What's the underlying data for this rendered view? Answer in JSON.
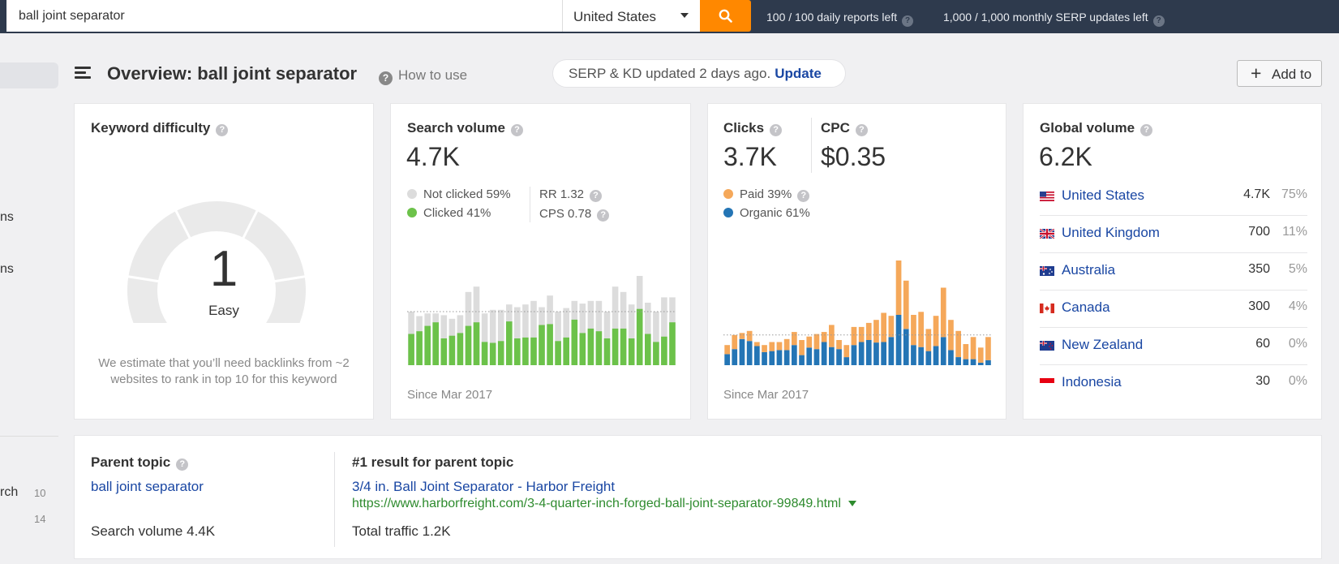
{
  "topbar": {
    "search_value": "ball joint separator",
    "country": "United States",
    "daily_reports": "100 / 100 daily reports left",
    "monthly_updates": "1,000 / 1,000 monthly SERP updates left"
  },
  "sidebar": {
    "fragments": [
      {
        "text": "ns"
      },
      {
        "text": "ns"
      },
      {
        "text": "rch",
        "count": "10"
      },
      {
        "text": "",
        "count": "14"
      }
    ]
  },
  "header": {
    "title": "Overview: ball joint separator",
    "how_to_use": "How to use",
    "update_text": "SERP & KD updated 2 days ago.",
    "update_link": "Update",
    "add_to": "Add to"
  },
  "keyword_difficulty": {
    "title": "Keyword difficulty",
    "value": "1",
    "score": 1,
    "label": "Easy",
    "note": "We estimate that you’ll need backlinks from ~2 websites to rank in top 10 for this keyword"
  },
  "search_volume": {
    "title": "Search volume",
    "value": "4.7K",
    "not_clicked": "Not clicked 59%",
    "clicked": "Clicked 41%",
    "rr": "RR 1.32",
    "cps": "CPS 0.78",
    "since": "Since Mar 2017",
    "colors": {
      "not_clicked": "#dcdcdc",
      "clicked": "#6cc24a"
    }
  },
  "clicks": {
    "title": "Clicks",
    "value": "3.7K",
    "cpc_title": "CPC",
    "cpc_value": "$0.35",
    "paid": "Paid 39%",
    "organic": "Organic 61%",
    "since": "Since Mar 2017",
    "colors": {
      "paid": "#f5a85a",
      "organic": "#2475b5"
    }
  },
  "global_volume": {
    "title": "Global volume",
    "value": "6.2K",
    "countries": [
      {
        "name": "United States",
        "volume": "4.7K",
        "pct": "75%",
        "flag": "us-flag-icon"
      },
      {
        "name": "United Kingdom",
        "volume": "700",
        "pct": "11%",
        "flag": "uk-flag-icon"
      },
      {
        "name": "Australia",
        "volume": "350",
        "pct": "5%",
        "flag": "au-flag-icon"
      },
      {
        "name": "Canada",
        "volume": "300",
        "pct": "4%",
        "flag": "ca-flag-icon"
      },
      {
        "name": "New Zealand",
        "volume": "60",
        "pct": "0%",
        "flag": "nz-flag-icon"
      },
      {
        "name": "Indonesia",
        "volume": "30",
        "pct": "0%",
        "flag": "id-flag-icon"
      }
    ]
  },
  "parent_topic": {
    "title": "Parent topic",
    "keyword": "ball joint separator",
    "search_volume": "Search volume 4.4K",
    "result_title": "#1 result for parent topic",
    "result_link": "3/4 in. Ball Joint Separator - Harbor Freight",
    "result_url": "https://www.harborfreight.com/3-4-quarter-inch-forged-ball-joint-separator-99849.html",
    "total_traffic": "Total traffic 1.2K"
  },
  "chart_data": [
    {
      "type": "bar",
      "stacked": true,
      "series": [
        {
          "name": "Clicked",
          "color": "#6cc24a",
          "values": [
            35,
            38,
            44,
            48,
            30,
            33,
            36,
            44,
            48,
            26,
            25,
            27,
            49,
            30,
            31,
            31,
            45,
            46,
            27,
            31,
            51,
            36,
            41,
            38,
            30,
            41,
            41,
            30,
            63,
            35,
            26,
            32,
            48
          ]
        },
        {
          "name": "Not clicked",
          "color": "#dcdcdc",
          "values": [
            60,
            55,
            58,
            58,
            56,
            52,
            56,
            82,
            88,
            58,
            62,
            62,
            68,
            65,
            68,
            72,
            65,
            78,
            60,
            64,
            72,
            69,
            72,
            72,
            60,
            88,
            82,
            68,
            100,
            70,
            60,
            76,
            76
          ]
        }
      ],
      "baseline": 60
    },
    {
      "type": "bar",
      "stacked": true,
      "series": [
        {
          "name": "Organic",
          "color": "#2475b5",
          "values": [
            22,
            32,
            52,
            48,
            38,
            26,
            28,
            30,
            30,
            40,
            20,
            35,
            32,
            46,
            36,
            32,
            16,
            40,
            46,
            50,
            45,
            46,
            56,
            100,
            72,
            40,
            36,
            28,
            38,
            56,
            30,
            16,
            12,
            12,
            5,
            10
          ]
        },
        {
          "name": "Paid",
          "color": "#f5a85a",
          "values": [
            18,
            28,
            12,
            20,
            8,
            14,
            18,
            16,
            22,
            26,
            30,
            22,
            30,
            20,
            44,
            18,
            24,
            36,
            30,
            34,
            45,
            58,
            42,
            108,
            96,
            60,
            70,
            44,
            60,
            98,
            60,
            52,
            30,
            44,
            30,
            46
          ]
        }
      ],
      "baseline": 60
    }
  ]
}
